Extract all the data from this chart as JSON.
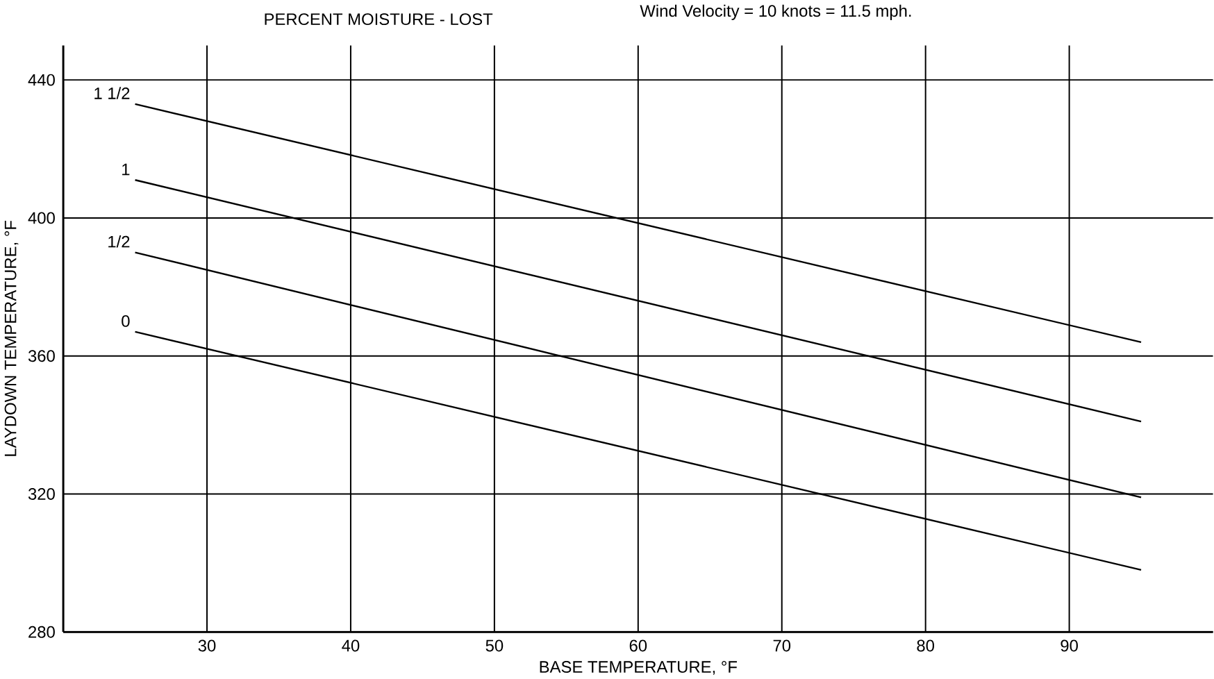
{
  "chart_data": {
    "type": "line",
    "title": "Wind Velocity = 10 knots = 11.5 mph.",
    "legend_title": "PERCENT MOISTURE - LOST",
    "xlabel": "BASE TEMPERATURE, °F",
    "ylabel": "LAYDOWN TEMPERATURE, °F",
    "x": [
      25,
      95
    ],
    "series": [
      {
        "name": "1 1/2",
        "color": "#000000",
        "values": [
          433,
          364
        ]
      },
      {
        "name": "1",
        "color": "#000000",
        "values": [
          411,
          341
        ]
      },
      {
        "name": "1/2",
        "color": "#000000",
        "values": [
          390,
          319
        ]
      },
      {
        "name": "0",
        "color": "#000000",
        "values": [
          367,
          298
        ]
      }
    ],
    "xlim": [
      20,
      100
    ],
    "ylim": [
      280,
      450
    ],
    "xticks": [
      30,
      40,
      50,
      60,
      70,
      80,
      90
    ],
    "yticks": [
      280,
      320,
      360,
      400,
      440
    ],
    "grid": true,
    "marker": "none",
    "line_style": "solid"
  }
}
